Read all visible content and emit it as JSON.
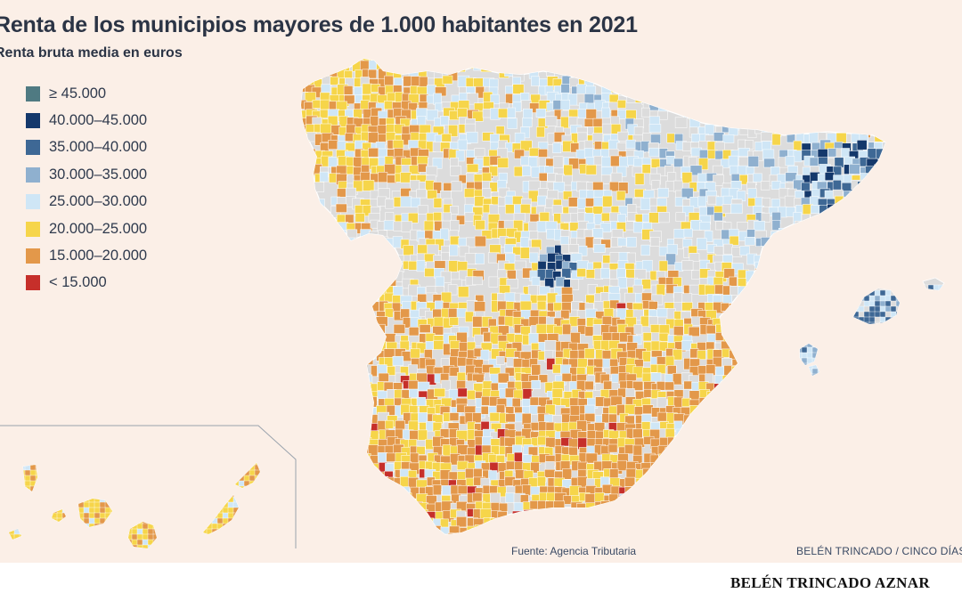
{
  "title": "Renta de los municipios mayores de 1.000 habitantes en 2021",
  "subtitle": "Renta bruta media en euros",
  "legend": [
    {
      "label": "≥ 45.000",
      "color": "#4f7a82"
    },
    {
      "label": "40.000–45.000",
      "color": "#14386b"
    },
    {
      "label": "35.000–40.000",
      "color": "#3e6895"
    },
    {
      "label": "30.000–35.000",
      "color": "#8fb0cf"
    },
    {
      "label": "25.000–30.000",
      "color": "#cfe6f6"
    },
    {
      "label": "20.000–25.000",
      "color": "#f6d54a"
    },
    {
      "label": "15.000–20.000",
      "color": "#e3984a"
    },
    {
      "label": "< 15.000",
      "color": "#c62f2a"
    }
  ],
  "map_base_color": "#dcdcdc",
  "source": "Fuente: Agencia Tributaria",
  "credit": "BELÉN TRINCADO / CINCO DÍAS",
  "byline": "BELÉN TRINCADO AZNAR"
}
